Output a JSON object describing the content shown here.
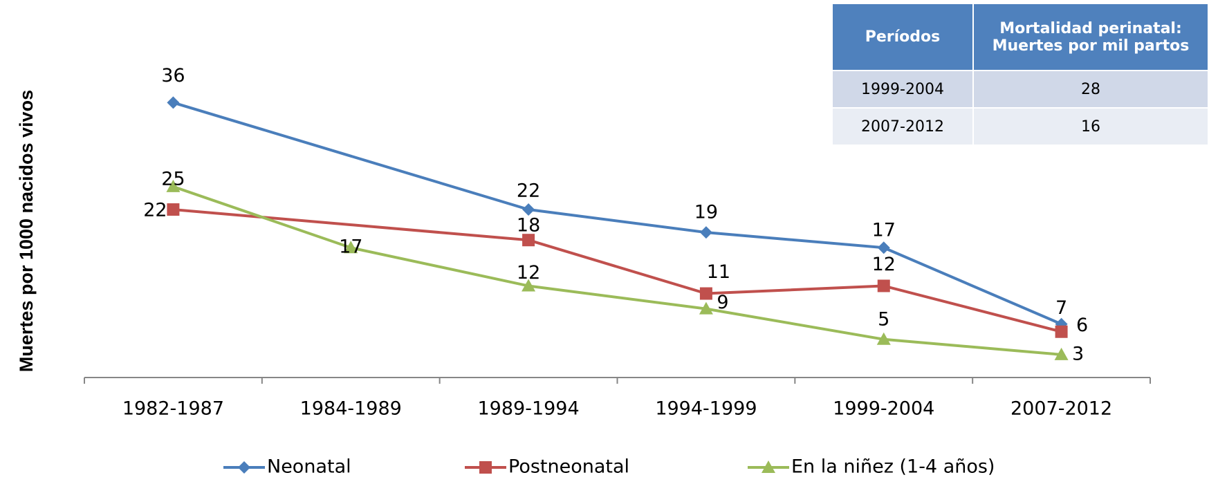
{
  "chart_data": {
    "type": "line",
    "y_label": "Muertes por 1000 nacidos vivos",
    "categories": [
      "1982-1987",
      "1984-1989",
      "1989-1994",
      "1994-1999",
      "1999-2004",
      "2007-2012"
    ],
    "series": [
      {
        "name": "Neonatal",
        "color": "#4a7ebb",
        "marker": "diamond",
        "values": [
          36,
          null,
          22,
          19,
          17,
          7
        ]
      },
      {
        "name": "Postneonatal",
        "color": "#c0504d",
        "marker": "square",
        "values": [
          22,
          null,
          18,
          11,
          12,
          6
        ]
      },
      {
        "name": "En la niñez (1-4 años)",
        "color": "#9bbb59",
        "marker": "triangle",
        "values": [
          25,
          17,
          12,
          9,
          5,
          3
        ]
      }
    ],
    "ylim": [
      0,
      45
    ],
    "grid": false,
    "legend": "bottom"
  },
  "table": {
    "header": [
      "Períodos",
      "Mortalidad perinatal: Muertes por mil partos"
    ],
    "rows": [
      [
        "1999-2004",
        "28"
      ],
      [
        "2007-2012",
        "16"
      ]
    ]
  }
}
